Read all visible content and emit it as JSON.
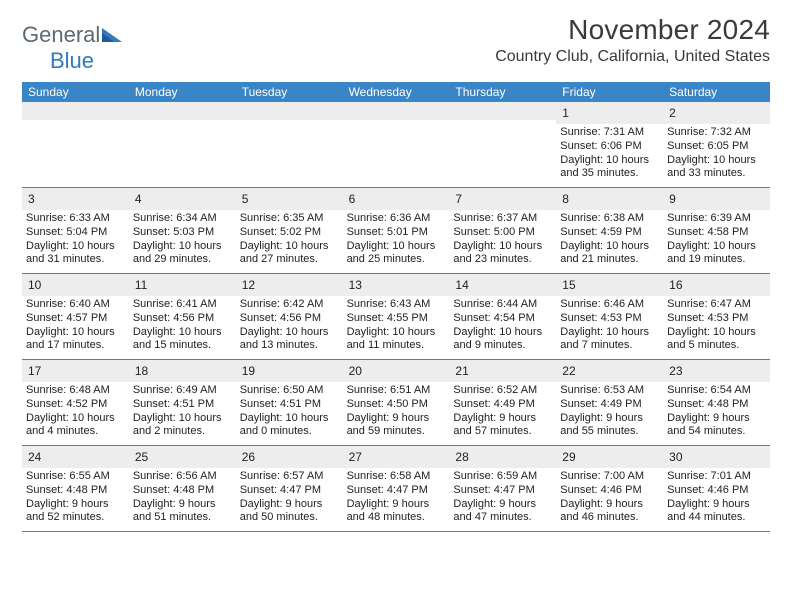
{
  "logo": {
    "word1": "General",
    "word2": "Blue"
  },
  "title": "November 2024",
  "location": "Country Club, California, United States",
  "colors": {
    "header_bg": "#3a85c5",
    "header_text": "#ffffff",
    "daynum_bg": "#ededed",
    "rule": "#3a85c5",
    "text": "#222222",
    "logo_gray": "#5a6a76",
    "logo_blue": "#2f7ac0"
  },
  "day_names": [
    "Sunday",
    "Monday",
    "Tuesday",
    "Wednesday",
    "Thursday",
    "Friday",
    "Saturday"
  ],
  "weeks": [
    [
      {
        "num": "",
        "sunrise": "",
        "sunset": "",
        "daylight1": "",
        "daylight2": ""
      },
      {
        "num": "",
        "sunrise": "",
        "sunset": "",
        "daylight1": "",
        "daylight2": ""
      },
      {
        "num": "",
        "sunrise": "",
        "sunset": "",
        "daylight1": "",
        "daylight2": ""
      },
      {
        "num": "",
        "sunrise": "",
        "sunset": "",
        "daylight1": "",
        "daylight2": ""
      },
      {
        "num": "",
        "sunrise": "",
        "sunset": "",
        "daylight1": "",
        "daylight2": ""
      },
      {
        "num": "1",
        "sunrise": "Sunrise: 7:31 AM",
        "sunset": "Sunset: 6:06 PM",
        "daylight1": "Daylight: 10 hours",
        "daylight2": "and 35 minutes."
      },
      {
        "num": "2",
        "sunrise": "Sunrise: 7:32 AM",
        "sunset": "Sunset: 6:05 PM",
        "daylight1": "Daylight: 10 hours",
        "daylight2": "and 33 minutes."
      }
    ],
    [
      {
        "num": "3",
        "sunrise": "Sunrise: 6:33 AM",
        "sunset": "Sunset: 5:04 PM",
        "daylight1": "Daylight: 10 hours",
        "daylight2": "and 31 minutes."
      },
      {
        "num": "4",
        "sunrise": "Sunrise: 6:34 AM",
        "sunset": "Sunset: 5:03 PM",
        "daylight1": "Daylight: 10 hours",
        "daylight2": "and 29 minutes."
      },
      {
        "num": "5",
        "sunrise": "Sunrise: 6:35 AM",
        "sunset": "Sunset: 5:02 PM",
        "daylight1": "Daylight: 10 hours",
        "daylight2": "and 27 minutes."
      },
      {
        "num": "6",
        "sunrise": "Sunrise: 6:36 AM",
        "sunset": "Sunset: 5:01 PM",
        "daylight1": "Daylight: 10 hours",
        "daylight2": "and 25 minutes."
      },
      {
        "num": "7",
        "sunrise": "Sunrise: 6:37 AM",
        "sunset": "Sunset: 5:00 PM",
        "daylight1": "Daylight: 10 hours",
        "daylight2": "and 23 minutes."
      },
      {
        "num": "8",
        "sunrise": "Sunrise: 6:38 AM",
        "sunset": "Sunset: 4:59 PM",
        "daylight1": "Daylight: 10 hours",
        "daylight2": "and 21 minutes."
      },
      {
        "num": "9",
        "sunrise": "Sunrise: 6:39 AM",
        "sunset": "Sunset: 4:58 PM",
        "daylight1": "Daylight: 10 hours",
        "daylight2": "and 19 minutes."
      }
    ],
    [
      {
        "num": "10",
        "sunrise": "Sunrise: 6:40 AM",
        "sunset": "Sunset: 4:57 PM",
        "daylight1": "Daylight: 10 hours",
        "daylight2": "and 17 minutes."
      },
      {
        "num": "11",
        "sunrise": "Sunrise: 6:41 AM",
        "sunset": "Sunset: 4:56 PM",
        "daylight1": "Daylight: 10 hours",
        "daylight2": "and 15 minutes."
      },
      {
        "num": "12",
        "sunrise": "Sunrise: 6:42 AM",
        "sunset": "Sunset: 4:56 PM",
        "daylight1": "Daylight: 10 hours",
        "daylight2": "and 13 minutes."
      },
      {
        "num": "13",
        "sunrise": "Sunrise: 6:43 AM",
        "sunset": "Sunset: 4:55 PM",
        "daylight1": "Daylight: 10 hours",
        "daylight2": "and 11 minutes."
      },
      {
        "num": "14",
        "sunrise": "Sunrise: 6:44 AM",
        "sunset": "Sunset: 4:54 PM",
        "daylight1": "Daylight: 10 hours",
        "daylight2": "and 9 minutes."
      },
      {
        "num": "15",
        "sunrise": "Sunrise: 6:46 AM",
        "sunset": "Sunset: 4:53 PM",
        "daylight1": "Daylight: 10 hours",
        "daylight2": "and 7 minutes."
      },
      {
        "num": "16",
        "sunrise": "Sunrise: 6:47 AM",
        "sunset": "Sunset: 4:53 PM",
        "daylight1": "Daylight: 10 hours",
        "daylight2": "and 5 minutes."
      }
    ],
    [
      {
        "num": "17",
        "sunrise": "Sunrise: 6:48 AM",
        "sunset": "Sunset: 4:52 PM",
        "daylight1": "Daylight: 10 hours",
        "daylight2": "and 4 minutes."
      },
      {
        "num": "18",
        "sunrise": "Sunrise: 6:49 AM",
        "sunset": "Sunset: 4:51 PM",
        "daylight1": "Daylight: 10 hours",
        "daylight2": "and 2 minutes."
      },
      {
        "num": "19",
        "sunrise": "Sunrise: 6:50 AM",
        "sunset": "Sunset: 4:51 PM",
        "daylight1": "Daylight: 10 hours",
        "daylight2": "and 0 minutes."
      },
      {
        "num": "20",
        "sunrise": "Sunrise: 6:51 AM",
        "sunset": "Sunset: 4:50 PM",
        "daylight1": "Daylight: 9 hours",
        "daylight2": "and 59 minutes."
      },
      {
        "num": "21",
        "sunrise": "Sunrise: 6:52 AM",
        "sunset": "Sunset: 4:49 PM",
        "daylight1": "Daylight: 9 hours",
        "daylight2": "and 57 minutes."
      },
      {
        "num": "22",
        "sunrise": "Sunrise: 6:53 AM",
        "sunset": "Sunset: 4:49 PM",
        "daylight1": "Daylight: 9 hours",
        "daylight2": "and 55 minutes."
      },
      {
        "num": "23",
        "sunrise": "Sunrise: 6:54 AM",
        "sunset": "Sunset: 4:48 PM",
        "daylight1": "Daylight: 9 hours",
        "daylight2": "and 54 minutes."
      }
    ],
    [
      {
        "num": "24",
        "sunrise": "Sunrise: 6:55 AM",
        "sunset": "Sunset: 4:48 PM",
        "daylight1": "Daylight: 9 hours",
        "daylight2": "and 52 minutes."
      },
      {
        "num": "25",
        "sunrise": "Sunrise: 6:56 AM",
        "sunset": "Sunset: 4:48 PM",
        "daylight1": "Daylight: 9 hours",
        "daylight2": "and 51 minutes."
      },
      {
        "num": "26",
        "sunrise": "Sunrise: 6:57 AM",
        "sunset": "Sunset: 4:47 PM",
        "daylight1": "Daylight: 9 hours",
        "daylight2": "and 50 minutes."
      },
      {
        "num": "27",
        "sunrise": "Sunrise: 6:58 AM",
        "sunset": "Sunset: 4:47 PM",
        "daylight1": "Daylight: 9 hours",
        "daylight2": "and 48 minutes."
      },
      {
        "num": "28",
        "sunrise": "Sunrise: 6:59 AM",
        "sunset": "Sunset: 4:47 PM",
        "daylight1": "Daylight: 9 hours",
        "daylight2": "and 47 minutes."
      },
      {
        "num": "29",
        "sunrise": "Sunrise: 7:00 AM",
        "sunset": "Sunset: 4:46 PM",
        "daylight1": "Daylight: 9 hours",
        "daylight2": "and 46 minutes."
      },
      {
        "num": "30",
        "sunrise": "Sunrise: 7:01 AM",
        "sunset": "Sunset: 4:46 PM",
        "daylight1": "Daylight: 9 hours",
        "daylight2": "and 44 minutes."
      }
    ]
  ]
}
